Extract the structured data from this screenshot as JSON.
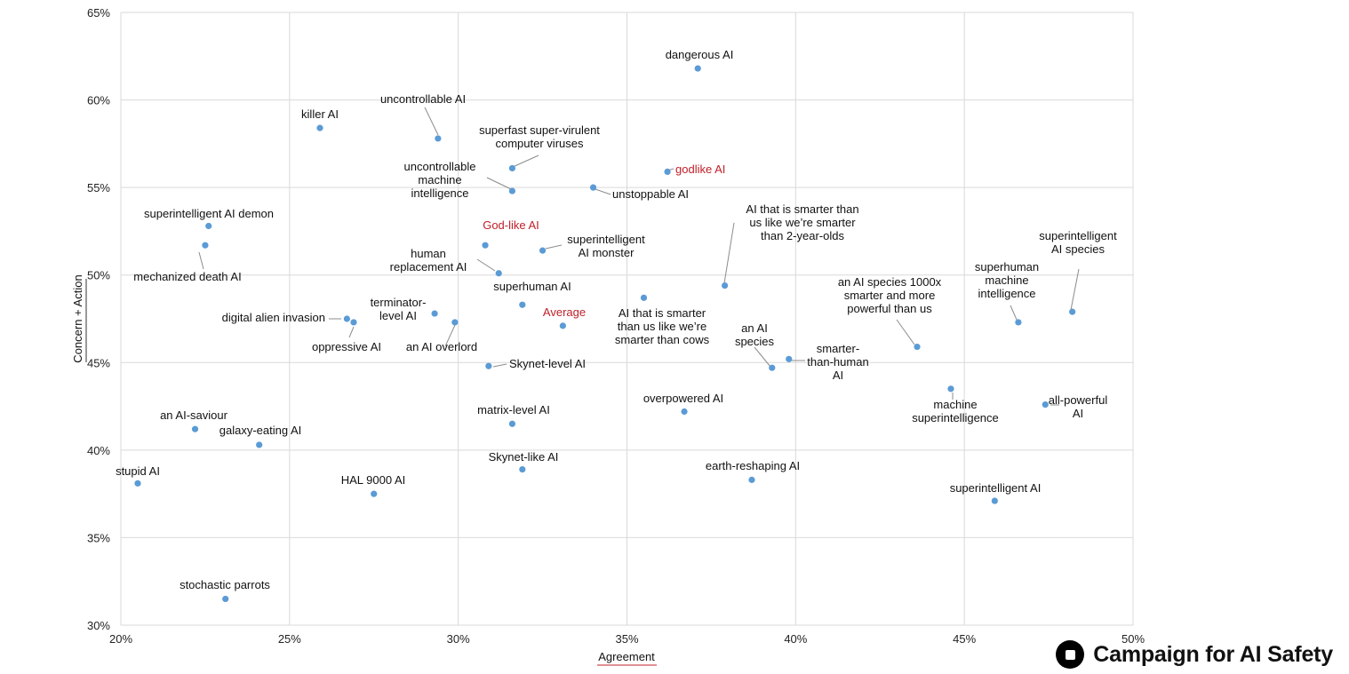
{
  "chart_data": {
    "type": "scatter",
    "xlabel": "Agreement",
    "ylabel": "Concern + Action",
    "xlim": [
      0.2,
      0.5
    ],
    "ylim": [
      0.3,
      0.65
    ],
    "xticks": [
      {
        "value": 0.2,
        "label": "20%"
      },
      {
        "value": 0.25,
        "label": "25%"
      },
      {
        "value": 0.3,
        "label": "30%"
      },
      {
        "value": 0.35,
        "label": "35%"
      },
      {
        "value": 0.4,
        "label": "40%"
      },
      {
        "value": 0.45,
        "label": "45%"
      },
      {
        "value": 0.5,
        "label": "50%"
      }
    ],
    "yticks": [
      {
        "value": 0.3,
        "label": "30%"
      },
      {
        "value": 0.35,
        "label": "35%"
      },
      {
        "value": 0.4,
        "label": "40%"
      },
      {
        "value": 0.45,
        "label": "45%"
      },
      {
        "value": 0.5,
        "label": "50%"
      },
      {
        "value": 0.55,
        "label": "55%"
      },
      {
        "value": 0.6,
        "label": "60%"
      },
      {
        "value": 0.65,
        "label": "65%"
      }
    ],
    "grid": true,
    "marker_color": "#5b9bd5",
    "highlight_color": "#c0202a",
    "points": [
      {
        "label": "dangerous AI",
        "x": 0.371,
        "y": 0.618
      },
      {
        "label": "killer AI",
        "x": 0.259,
        "y": 0.584
      },
      {
        "label": "uncontrollable AI",
        "x": 0.294,
        "y": 0.578
      },
      {
        "label": "superfast super-virulent computer viruses",
        "x": 0.316,
        "y": 0.561
      },
      {
        "label": "godlike AI",
        "x": 0.362,
        "y": 0.559,
        "highlight": true
      },
      {
        "label": "uncontrollable machine intelligence",
        "x": 0.316,
        "y": 0.548
      },
      {
        "label": "unstoppable AI",
        "x": 0.34,
        "y": 0.55
      },
      {
        "label": "superintelligent AI demon",
        "x": 0.226,
        "y": 0.528
      },
      {
        "label": "mechanized death AI",
        "x": 0.225,
        "y": 0.517
      },
      {
        "label": "God-like AI",
        "x": 0.308,
        "y": 0.517,
        "highlight": true
      },
      {
        "label": "superintelligent AI monster",
        "x": 0.325,
        "y": 0.514
      },
      {
        "label": "human replacement AI",
        "x": 0.312,
        "y": 0.501
      },
      {
        "label": "AI that is smarter than us like we’re smarter than 2-year-olds",
        "x": 0.379,
        "y": 0.494
      },
      {
        "label": "superintelligent AI species",
        "x": 0.482,
        "y": 0.479
      },
      {
        "label": "superhuman AI",
        "x": 0.319,
        "y": 0.483
      },
      {
        "label": "AI that is smarter than us like we’re smarter than cows",
        "x": 0.355,
        "y": 0.487
      },
      {
        "label": "terminator-level AI",
        "x": 0.293,
        "y": 0.478
      },
      {
        "label": "an AI overlord",
        "x": 0.299,
        "y": 0.473
      },
      {
        "label": "digital alien invasion",
        "x": 0.267,
        "y": 0.475
      },
      {
        "label": "oppressive AI",
        "x": 0.269,
        "y": 0.473
      },
      {
        "label": "Average",
        "x": 0.331,
        "y": 0.471,
        "highlight": true
      },
      {
        "label": "superhuman machine intelligence",
        "x": 0.466,
        "y": 0.473
      },
      {
        "label": "an AI species 1000x smarter and more powerful than us",
        "x": 0.436,
        "y": 0.459
      },
      {
        "label": "smarter-than-human AI",
        "x": 0.398,
        "y": 0.452
      },
      {
        "label": "an AI species",
        "x": 0.393,
        "y": 0.447
      },
      {
        "label": "Skynet-level AI",
        "x": 0.309,
        "y": 0.448
      },
      {
        "label": "machine superintelligence",
        "x": 0.446,
        "y": 0.435
      },
      {
        "label": "all-powerful AI",
        "x": 0.474,
        "y": 0.426
      },
      {
        "label": "overpowered AI",
        "x": 0.367,
        "y": 0.422
      },
      {
        "label": "matrix-level AI",
        "x": 0.316,
        "y": 0.415
      },
      {
        "label": "an AI-saviour",
        "x": 0.222,
        "y": 0.412
      },
      {
        "label": "galaxy-eating AI",
        "x": 0.241,
        "y": 0.403
      },
      {
        "label": "Skynet-like AI",
        "x": 0.319,
        "y": 0.389
      },
      {
        "label": "earth-reshaping AI",
        "x": 0.387,
        "y": 0.383
      },
      {
        "label": "stupid AI",
        "x": 0.205,
        "y": 0.381
      },
      {
        "label": "HAL 9000 AI",
        "x": 0.275,
        "y": 0.375
      },
      {
        "label": "superintelligent AI",
        "x": 0.459,
        "y": 0.371
      },
      {
        "label": "stochastic parrots",
        "x": 0.231,
        "y": 0.315
      }
    ]
  },
  "branding": {
    "name": "Campaign for AI Safety",
    "icon": "stop-square-icon"
  }
}
